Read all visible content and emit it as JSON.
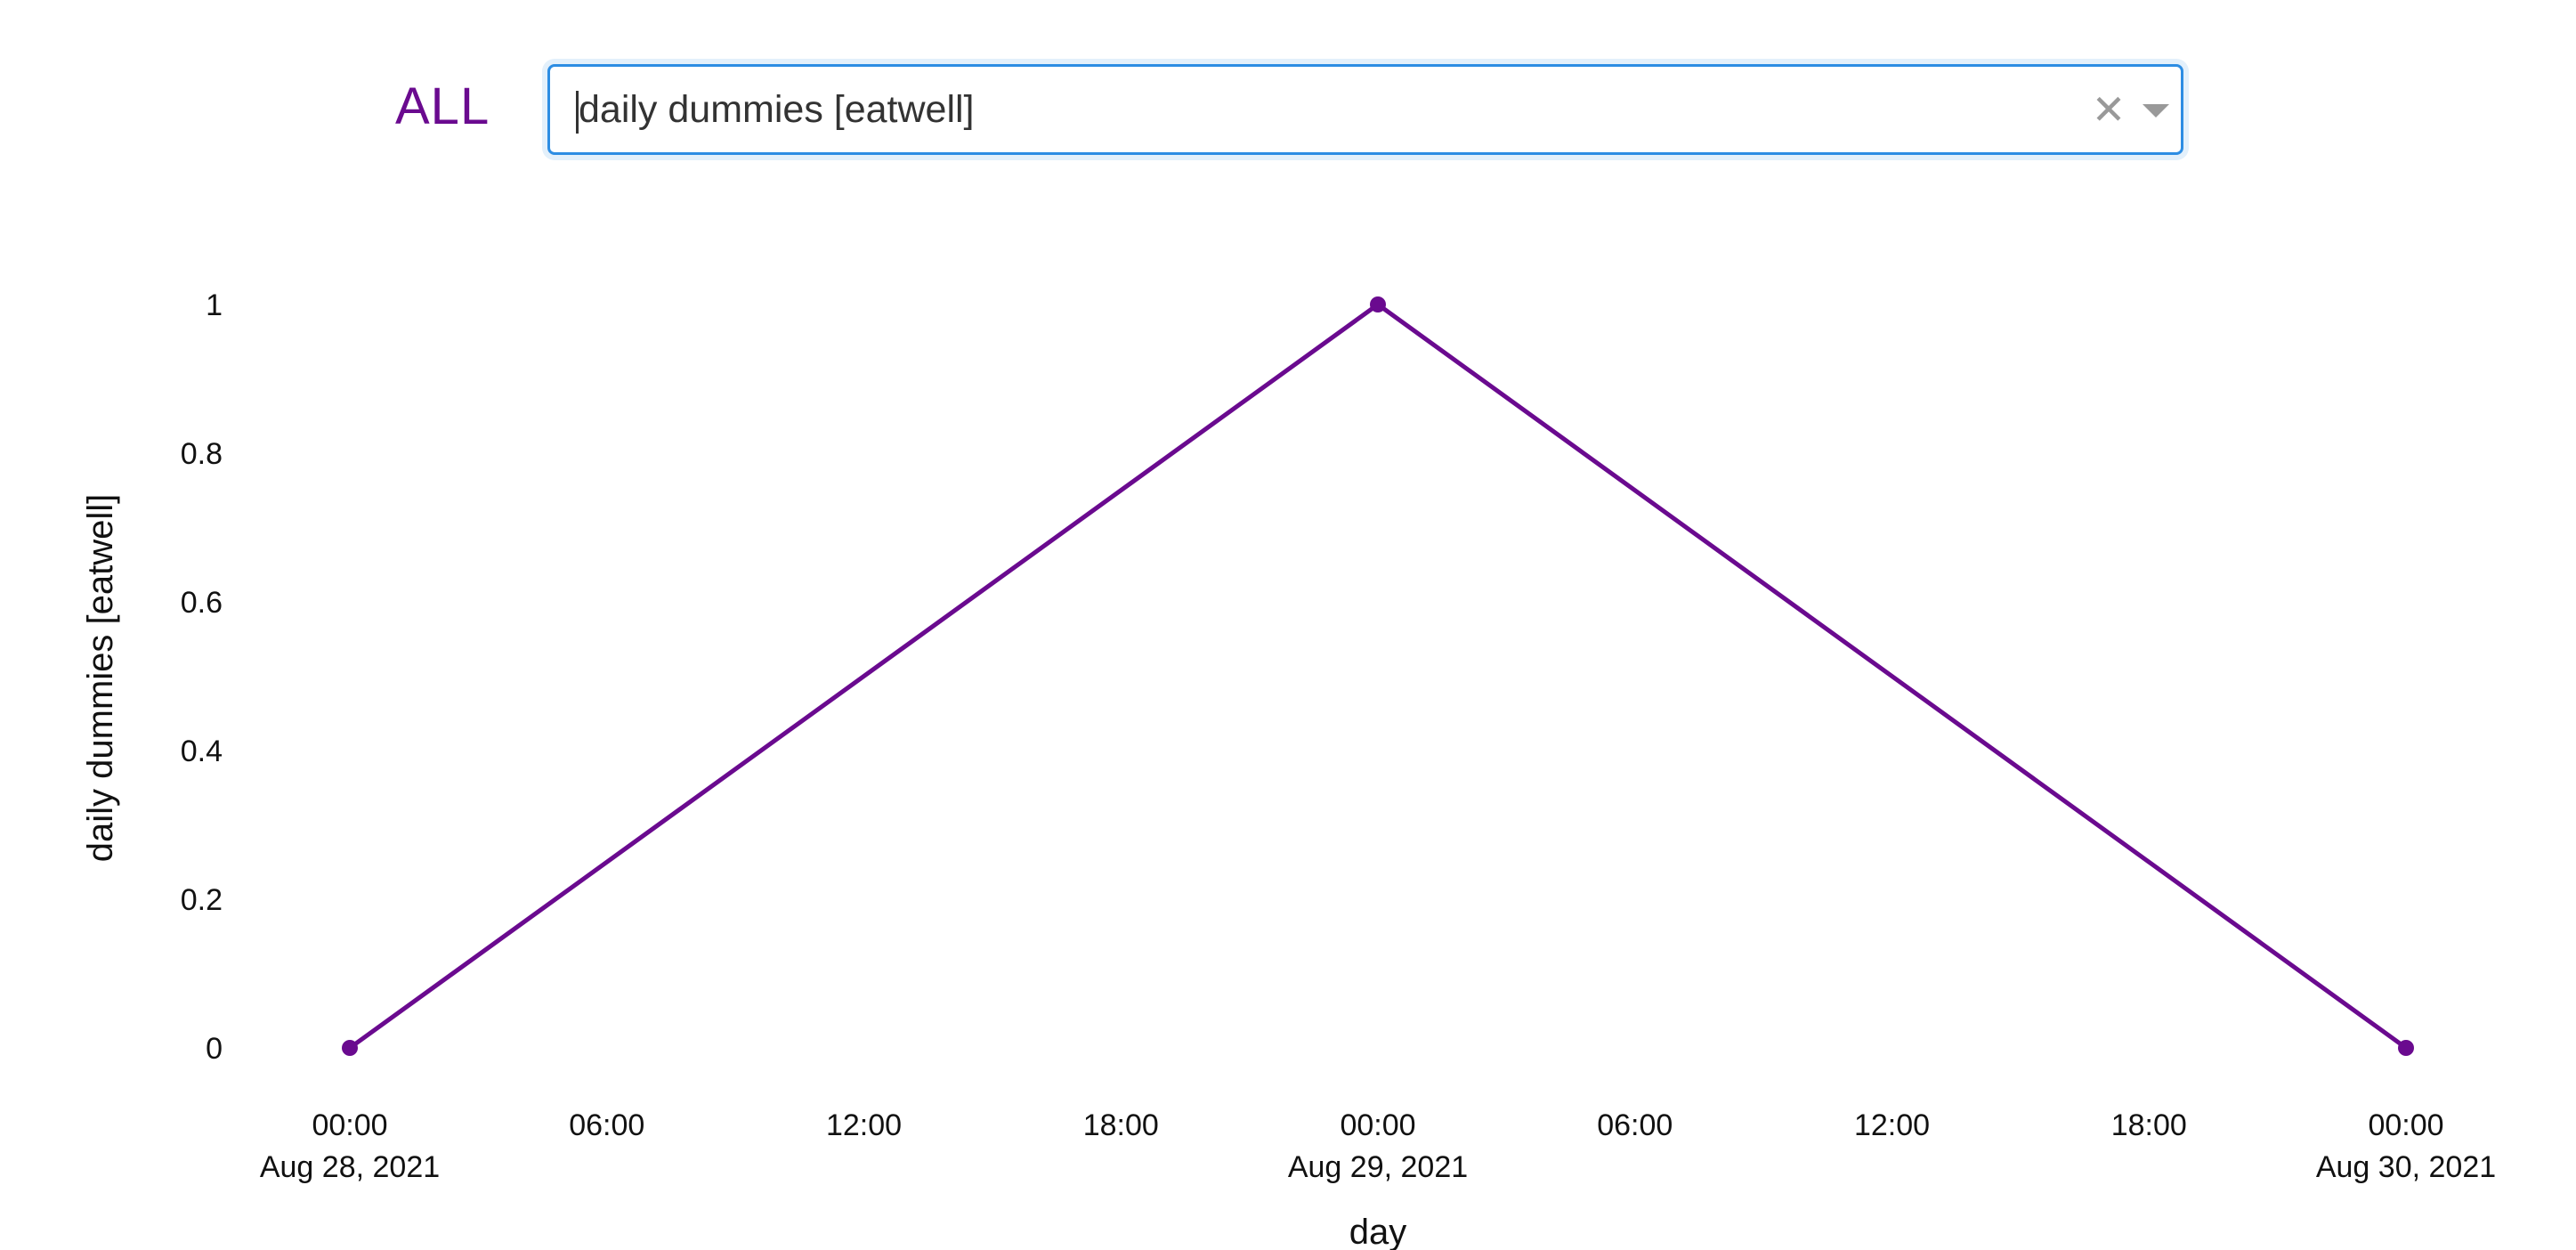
{
  "filter": {
    "all_label": "ALL",
    "dropdown_value": "daily dummies [eatwell]",
    "clear_icon": "close-icon",
    "chevron_icon": "chevron-down-icon"
  },
  "colors": {
    "accent": "#6a0a8f",
    "focus_border": "#2d8de3"
  },
  "chart_data": {
    "type": "line",
    "title": "",
    "xlabel": "day",
    "ylabel": "daily dummies [eatwell]",
    "x": [
      "2021-08-28T00:00",
      "2021-08-29T00:00",
      "2021-08-30T00:00"
    ],
    "series": [
      {
        "values": [
          0,
          1,
          0
        ],
        "color": "#6a0a8f"
      }
    ],
    "xlim": [
      "2021-08-28T00:00",
      "2021-08-30T00:00"
    ],
    "ylim": [
      0,
      1
    ],
    "yticks": [
      {
        "value": 0,
        "label": "0"
      },
      {
        "value": 0.2,
        "label": "0.2"
      },
      {
        "value": 0.4,
        "label": "0.4"
      },
      {
        "value": 0.6,
        "label": "0.6"
      },
      {
        "value": 0.8,
        "label": "0.8"
      },
      {
        "value": 1,
        "label": "1"
      }
    ],
    "xticks": [
      {
        "value": "2021-08-28T00:00",
        "label": "00:00",
        "sublabel": "Aug 28, 2021"
      },
      {
        "value": "2021-08-28T06:00",
        "label": "06:00",
        "sublabel": ""
      },
      {
        "value": "2021-08-28T12:00",
        "label": "12:00",
        "sublabel": ""
      },
      {
        "value": "2021-08-28T18:00",
        "label": "18:00",
        "sublabel": ""
      },
      {
        "value": "2021-08-29T00:00",
        "label": "00:00",
        "sublabel": "Aug 29, 2021"
      },
      {
        "value": "2021-08-29T06:00",
        "label": "06:00",
        "sublabel": ""
      },
      {
        "value": "2021-08-29T12:00",
        "label": "12:00",
        "sublabel": ""
      },
      {
        "value": "2021-08-29T18:00",
        "label": "18:00",
        "sublabel": ""
      },
      {
        "value": "2021-08-30T00:00",
        "label": "00:00",
        "sublabel": "Aug 30, 2021"
      }
    ],
    "grid": false,
    "legend": "none",
    "markers": true
  }
}
